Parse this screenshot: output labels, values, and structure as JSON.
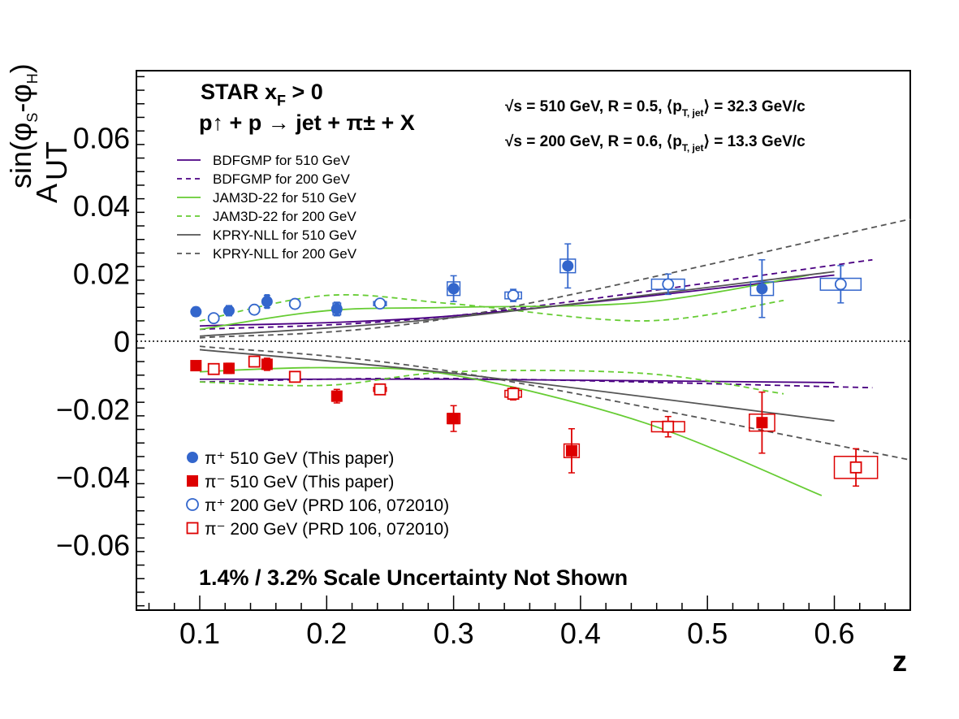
{
  "chart_data": {
    "type": "scatter",
    "xlabel": "z",
    "ylabel": "A_UT^{sin(φS-φH)}",
    "xlim": [
      0.05,
      0.655
    ],
    "ylim": [
      -0.08,
      0.08
    ],
    "x_ticks": [
      "0.1",
      "0.2",
      "0.3",
      "0.4",
      "0.5",
      "0.6"
    ],
    "y_ticks": [
      "−0.06",
      "−0.04",
      "−0.02",
      "0",
      "0.02",
      "0.04",
      "0.06"
    ],
    "x_tick_values": [
      0.1,
      0.2,
      0.3,
      0.4,
      0.5,
      0.6
    ],
    "y_tick_values": [
      -0.06,
      -0.04,
      -0.02,
      0,
      0.02,
      0.04,
      0.06
    ],
    "annotations": {
      "star_title": "STAR   x",
      "star_sub": "F",
      "star_gt": " > 0",
      "reaction": "p↑ + p → jet + π± + X",
      "energy_510": "√s = 510 GeV, R = 0.5, ⟨p",
      "energy_510_sub": "T, jet",
      "energy_510_end": "⟩ = 32.3 GeV/c",
      "energy_200": "√s = 200 GeV, R = 0.6, ⟨p",
      "energy_200_sub": "T, jet",
      "energy_200_end": "⟩ = 13.3 GeV/c",
      "scale": "1.4% / 3.2% Scale Uncertainty Not Shown"
    },
    "legend_curves": [
      {
        "label": " BDFGMP for 510 GeV",
        "color": "#4b0082",
        "dash": false
      },
      {
        "label": " BDFGMP for 200 GeV",
        "color": "#4b0082",
        "dash": true
      },
      {
        "label": "JAM3D-22 for 510 GeV",
        "color": "#66cc33",
        "dash": false
      },
      {
        "label": "JAM3D-22 for 200 GeV",
        "color": "#66cc33",
        "dash": true
      },
      {
        "label": " KPRY-NLL for 510 GeV",
        "color": "#555555",
        "dash": false
      },
      {
        "label": " KPRY-NLL for 200 GeV",
        "color": "#555555",
        "dash": true
      }
    ],
    "legend_points": [
      {
        "label": "π⁺ 510 GeV (This paper)",
        "marker": "filled-circle",
        "color": "#3366cc"
      },
      {
        "label": "π⁻ 510 GeV (This paper)",
        "marker": "filled-square",
        "color": "#dd0000"
      },
      {
        "label": "π⁺ 200 GeV (PRD 106, 072010)",
        "marker": "open-circle",
        "color": "#3366cc"
      },
      {
        "label": "π⁻ 200 GeV (PRD 106, 072010)",
        "marker": "open-square",
        "color": "#dd0000"
      }
    ],
    "series": [
      {
        "name": "π+ 510 GeV",
        "marker": "filled-circle",
        "color": "#3366cc",
        "x": [
          0.097,
          0.123,
          0.153,
          0.208,
          0.3,
          0.39,
          0.543
        ],
        "y": [
          0.0087,
          0.009,
          0.0117,
          0.0095,
          0.0155,
          0.0222,
          0.0155
        ],
        "err": [
          0.0013,
          0.0015,
          0.0018,
          0.002,
          0.0038,
          0.0065,
          0.0085
        ],
        "sys_w": [
          0.003,
          0.003,
          0.003,
          0.006,
          0.01,
          0.012,
          0.018
        ],
        "sys_h": [
          0.0025,
          0.0025,
          0.004,
          0.0035,
          0.004,
          0.004,
          0.004
        ]
      },
      {
        "name": "π- 510 GeV",
        "marker": "filled-square",
        "color": "#dd0000",
        "x": [
          0.097,
          0.123,
          0.153,
          0.208,
          0.3,
          0.393,
          0.543
        ],
        "y": [
          -0.0072,
          -0.008,
          -0.0068,
          -0.0162,
          -0.0228,
          -0.0323,
          -0.024
        ],
        "err": [
          0.0013,
          0.0015,
          0.0018,
          0.002,
          0.0038,
          0.0065,
          0.009
        ],
        "sys_w": [
          0.003,
          0.003,
          0.003,
          0.006,
          0.01,
          0.012,
          0.02
        ],
        "sys_h": [
          0.0025,
          0.0025,
          0.003,
          0.003,
          0.003,
          0.004,
          0.005
        ]
      },
      {
        "name": "π+ 200 GeV",
        "marker": "open-circle",
        "color": "#3366cc",
        "x": [
          0.111,
          0.143,
          0.175,
          0.242,
          0.347,
          0.469,
          0.605
        ],
        "y": [
          0.0068,
          0.0093,
          0.011,
          0.0111,
          0.0135,
          0.0168,
          0.0168
        ],
        "err": [
          0.001,
          0.0012,
          0.0013,
          0.0012,
          0.0018,
          0.003,
          0.0055
        ],
        "sys_w": [
          0.008,
          0.008,
          0.008,
          0.01,
          0.013,
          0.026,
          0.032
        ],
        "sys_h": [
          0.0012,
          0.0012,
          0.0012,
          0.0012,
          0.002,
          0.003,
          0.0035
        ]
      },
      {
        "name": "π- 200 GeV",
        "marker": "open-square",
        "color": "#dd0000",
        "x": [
          0.111,
          0.143,
          0.175,
          0.242,
          0.347,
          0.469,
          0.617
        ],
        "y": [
          -0.0082,
          -0.006,
          -0.0105,
          -0.0142,
          -0.0155,
          -0.0252,
          -0.0372
        ],
        "err": [
          0.001,
          0.0012,
          0.0013,
          0.0012,
          0.0018,
          0.003,
          0.0055
        ],
        "sys_w": [
          0.008,
          0.008,
          0.008,
          0.01,
          0.013,
          0.026,
          0.034
        ],
        "sys_h": [
          0.0012,
          0.0012,
          0.0012,
          0.0012,
          0.002,
          0.003,
          0.0065
        ]
      }
    ],
    "curves": [
      {
        "name": "BDFGMP 510 upper",
        "color": "#4b0082",
        "dash": false,
        "x": [
          0.1,
          0.3,
          0.6
        ],
        "y": [
          0.0045,
          0.0075,
          0.0195
        ]
      },
      {
        "name": "BDFGMP 510 lower",
        "color": "#4b0082",
        "dash": false,
        "x": [
          0.1,
          0.3,
          0.6
        ],
        "y": [
          -0.0112,
          -0.0112,
          -0.0122
        ]
      },
      {
        "name": "BDFGMP 200 upper",
        "color": "#4b0082",
        "dash": true,
        "x": [
          0.1,
          0.3,
          0.63
        ],
        "y": [
          0.0035,
          0.0075,
          0.024
        ]
      },
      {
        "name": "BDFGMP 200 lower",
        "color": "#4b0082",
        "dash": true,
        "x": [
          0.1,
          0.3,
          0.63
        ],
        "y": [
          -0.012,
          -0.011,
          -0.0137
        ]
      },
      {
        "name": "JAM3D 510 upper",
        "color": "#66cc33",
        "dash": false,
        "x": [
          0.1,
          0.2,
          0.3,
          0.45,
          0.58
        ],
        "y": [
          0.0035,
          0.009,
          0.01,
          0.0115,
          0.0195
        ]
      },
      {
        "name": "JAM3D 510 lower",
        "color": "#66cc33",
        "dash": false,
        "x": [
          0.1,
          0.2,
          0.3,
          0.45,
          0.59
        ],
        "y": [
          -0.009,
          -0.0078,
          -0.01,
          -0.024,
          -0.0455
        ]
      },
      {
        "name": "JAM3D 200 upper",
        "color": "#66cc33",
        "dash": true,
        "x": [
          0.1,
          0.2,
          0.3,
          0.45,
          0.56
        ],
        "y": [
          0.006,
          0.0135,
          0.011,
          0.006,
          0.012
        ]
      },
      {
        "name": "JAM3D 200 lower",
        "color": "#66cc33",
        "dash": true,
        "x": [
          0.1,
          0.2,
          0.3,
          0.45,
          0.56
        ],
        "y": [
          -0.012,
          -0.013,
          -0.009,
          -0.0095,
          -0.0155
        ]
      },
      {
        "name": "KPRY 510 upper",
        "color": "#555555",
        "dash": false,
        "x": [
          0.1,
          0.3,
          0.6
        ],
        "y": [
          0.0015,
          0.007,
          0.0205
        ]
      },
      {
        "name": "KPRY 510 lower",
        "color": "#555555",
        "dash": false,
        "x": [
          0.1,
          0.3,
          0.6
        ],
        "y": [
          -0.0025,
          -0.0095,
          -0.0235
        ]
      },
      {
        "name": "KPRY 200 upper",
        "color": "#555555",
        "dash": true,
        "x": [
          0.1,
          0.3,
          0.66
        ],
        "y": [
          0.001,
          0.007,
          0.036
        ]
      },
      {
        "name": "KPRY 200 lower",
        "color": "#555555",
        "dash": true,
        "x": [
          0.1,
          0.3,
          0.66
        ],
        "y": [
          -0.0015,
          -0.009,
          -0.035
        ]
      }
    ]
  }
}
